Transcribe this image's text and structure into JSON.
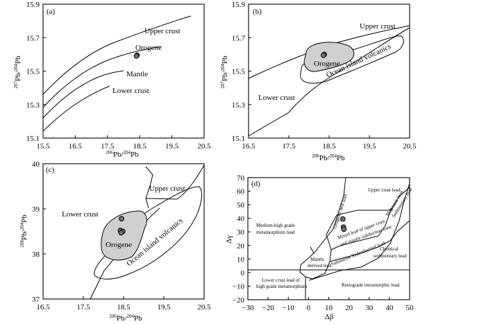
{
  "chart_data": [
    {
      "type": "scatter",
      "panel_label": "(a)",
      "xlabel": "206Pb/204Pb",
      "ylabel": "207Pb/204Pb",
      "xlim": [
        15.5,
        20.5
      ],
      "ylim": [
        15.1,
        15.9
      ],
      "x_ticks": [
        "15.5",
        "16.5",
        "17.5",
        "18.5",
        "19.5",
        "20.5"
      ],
      "y_ticks": [
        "15.1",
        "15.3",
        "15.5",
        "15.7",
        "15.9"
      ],
      "curve_labels": [
        "Upper crust",
        "Orogene",
        "Mantle",
        "Lower crust"
      ],
      "points": [
        {
          "x": 18.42,
          "y": 15.595
        },
        {
          "x": 18.4,
          "y": 15.59
        }
      ]
    },
    {
      "type": "scatter",
      "panel_label": "(b)",
      "xlabel": "206Pb/204Pb",
      "ylabel": "207Pb/204Pb",
      "xlim": [
        16.5,
        20.5
      ],
      "ylim": [
        15.1,
        15.9
      ],
      "x_ticks": [
        "16.5",
        "17.5",
        "18.5",
        "19.5",
        "20.5"
      ],
      "y_ticks": [
        "15.1",
        "15.3",
        "15.5",
        "15.7",
        "15.9"
      ],
      "field_labels": [
        "Upper crust",
        "Orogene",
        "Ocean island volcanics",
        "Lower crust"
      ],
      "points": [
        {
          "x": 18.38,
          "y": 15.6
        },
        {
          "x": 18.36,
          "y": 15.595
        }
      ]
    },
    {
      "type": "scatter",
      "panel_label": "(c)",
      "xlabel": "206Pb/204Pb",
      "ylabel": "208Pb/204Pb",
      "xlim": [
        16.5,
        20.5
      ],
      "ylim": [
        37,
        40
      ],
      "x_ticks": [
        "16.5",
        "17.5",
        "18.5",
        "19.5",
        "20.5"
      ],
      "y_ticks": [
        "37",
        "38",
        "39",
        "40"
      ],
      "field_labels": [
        "Upper crust",
        "Lower crust",
        "Orogene",
        "Ocean island volcanics"
      ],
      "points": [
        {
          "x": 18.45,
          "y": 38.78
        },
        {
          "x": 18.42,
          "y": 38.52
        },
        {
          "x": 18.48,
          "y": 38.5
        },
        {
          "x": 18.44,
          "y": 38.47
        }
      ]
    },
    {
      "type": "scatter",
      "panel_label": "(d)",
      "xlabel": "Δβ",
      "ylabel": "Δγ",
      "xlim": [
        -30,
        50
      ],
      "ylim": [
        -20,
        70
      ],
      "x_ticks": [
        "−30",
        "−20",
        "−10",
        "0",
        "10",
        "20",
        "30",
        "40",
        "50"
      ],
      "y_ticks": [
        "−20",
        "−10",
        "0",
        "10",
        "20",
        "30",
        "40",
        "50",
        "60",
        "70"
      ],
      "field_labels": [
        "Upper crust lead",
        "Orogenic belt lead",
        "Medium-high grade",
        "metamorphism lead",
        "Mixed lead of upper crust",
        "and mantle subduction zone",
        "Chemical",
        "sedimentary lead",
        "Mantle",
        "derived lead",
        "Submarine hydrothermal lead",
        "Lower crust lead of",
        "high grade metamorphism",
        "Retrograde metamorphic lead",
        "Magmatic lead",
        "Sedimentary lead"
      ],
      "points": [
        {
          "x": 17.0,
          "y": 39.5
        },
        {
          "x": 17.3,
          "y": 33.5
        },
        {
          "x": 17.5,
          "y": 32.0
        }
      ]
    }
  ]
}
